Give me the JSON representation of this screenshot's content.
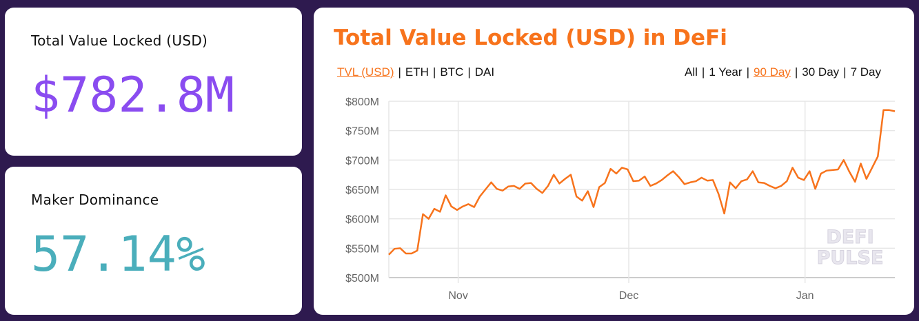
{
  "cards": [
    {
      "label": "Total Value Locked (USD)",
      "value": "$782.8M",
      "color": "#8a4cf0"
    },
    {
      "label": "Maker Dominance",
      "value": "57.14%",
      "color": "#4aaebb"
    }
  ],
  "chart_card": {
    "title": "Total Value Locked (USD) in DeFi",
    "metrics": [
      {
        "label": "TVL (USD)",
        "active": true
      },
      {
        "label": "ETH",
        "active": false
      },
      {
        "label": "BTC",
        "active": false
      },
      {
        "label": "DAI",
        "active": false
      }
    ],
    "ranges": [
      {
        "label": "All",
        "active": false
      },
      {
        "label": "1 Year",
        "active": false
      },
      {
        "label": "90 Day",
        "active": true
      },
      {
        "label": "30 Day",
        "active": false
      },
      {
        "label": "7 Day",
        "active": false
      }
    ],
    "watermark": [
      "DEFI",
      "PULSE"
    ]
  },
  "colors": {
    "background": "#2e1a4f",
    "accent": "#f7731c",
    "line": "#f7731c"
  },
  "chart_data": {
    "type": "line",
    "title": "Total Value Locked (USD) in DeFi",
    "xlabel": "",
    "ylabel": "",
    "ylim": [
      500,
      800
    ],
    "y_ticks": [
      {
        "v": 500,
        "label": "$500M"
      },
      {
        "v": 550,
        "label": "$550M"
      },
      {
        "v": 600,
        "label": "$600M"
      },
      {
        "v": 650,
        "label": "$650M"
      },
      {
        "v": 700,
        "label": "$700M"
      },
      {
        "v": 750,
        "label": "$750M"
      },
      {
        "v": 800,
        "label": "$800M"
      }
    ],
    "x_range_days": [
      0,
      89
    ],
    "x_ticks": [
      {
        "day": 12.2,
        "label": "Nov"
      },
      {
        "day": 42.2,
        "label": "Dec"
      },
      {
        "day": 73.2,
        "label": "Jan"
      }
    ],
    "grid": true,
    "series": [
      {
        "name": "TVL (USD, $M)",
        "values": [
          539,
          549,
          550,
          541,
          541,
          546,
          608,
          600,
          617,
          612,
          640,
          621,
          615,
          621,
          625,
          620,
          638,
          650,
          662,
          651,
          648,
          655,
          656,
          651,
          660,
          661,
          651,
          644,
          656,
          675,
          660,
          668,
          675,
          638,
          631,
          647,
          620,
          654,
          661,
          685,
          677,
          687,
          684,
          664,
          665,
          672,
          656,
          660,
          666,
          674,
          681,
          671,
          659,
          662,
          664,
          670,
          665,
          666,
          642,
          609,
          662,
          652,
          664,
          667,
          681,
          662,
          661,
          656,
          652,
          656,
          664,
          687,
          670,
          666,
          681,
          651,
          677,
          682,
          683,
          684,
          700,
          680,
          663,
          694,
          668,
          687,
          706,
          785,
          785,
          783
        ]
      }
    ]
  }
}
